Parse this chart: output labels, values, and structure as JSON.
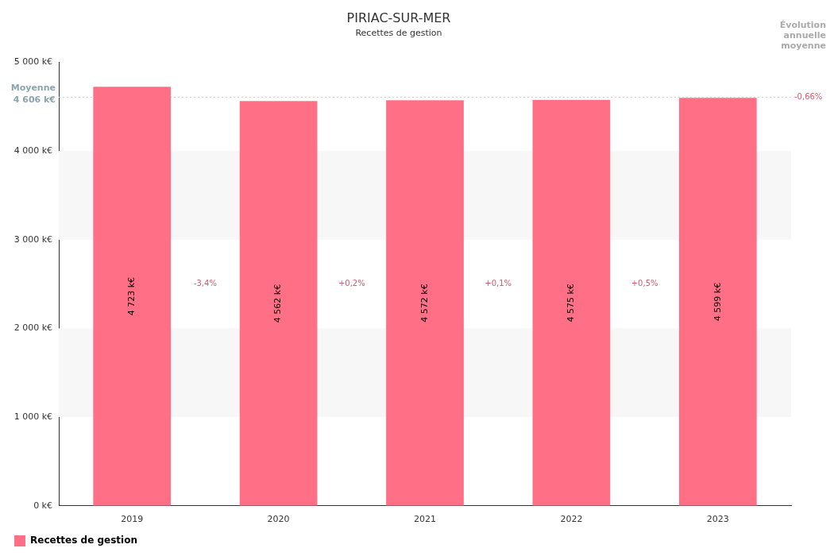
{
  "chart_data": {
    "type": "bar",
    "title": "PIRIAC-SUR-MER",
    "subtitle": "Recettes de gestion",
    "categories": [
      "2019",
      "2020",
      "2021",
      "2022",
      "2023"
    ],
    "series": [
      {
        "name": "Recettes de gestion",
        "color": "#ff6f86",
        "values": [
          4723,
          4562,
          4572,
          4575,
          4599
        ],
        "value_labels": [
          "4 723 k€",
          "4 562 k€",
          "4 572 k€",
          "4 575 k€",
          "4 599 k€"
        ]
      }
    ],
    "ylim": [
      0,
      5000
    ],
    "yticks": [
      {
        "value": 0,
        "label": "0 k€"
      },
      {
        "value": 1000,
        "label": "1 000 k€"
      },
      {
        "value": 2000,
        "label": "2 000 k€"
      },
      {
        "value": 3000,
        "label": "3 000 k€"
      },
      {
        "value": 4000,
        "label": "4 000 k€"
      },
      {
        "value": 5000,
        "label": "5 000 k€"
      }
    ],
    "ref_lines": [
      {
        "axis": "y",
        "value": 4606,
        "label": "Moyenne\n4 606 k€",
        "color": "#cccccc",
        "line_style": "dotted"
      }
    ],
    "bands": [
      {
        "axis": "y",
        "from": 1000,
        "to": 2000,
        "color": "#f7f7f7"
      },
      {
        "axis": "y",
        "from": 3000,
        "to": 4000,
        "color": "#f7f7f7"
      }
    ],
    "annotations": [
      "Évolution\nannuelle\nmoyenne",
      "-0,66%",
      "-3,4%",
      "+0,2%",
      "+0,1%",
      "+0,5%"
    ],
    "grid": false,
    "legend": "bottom left"
  }
}
